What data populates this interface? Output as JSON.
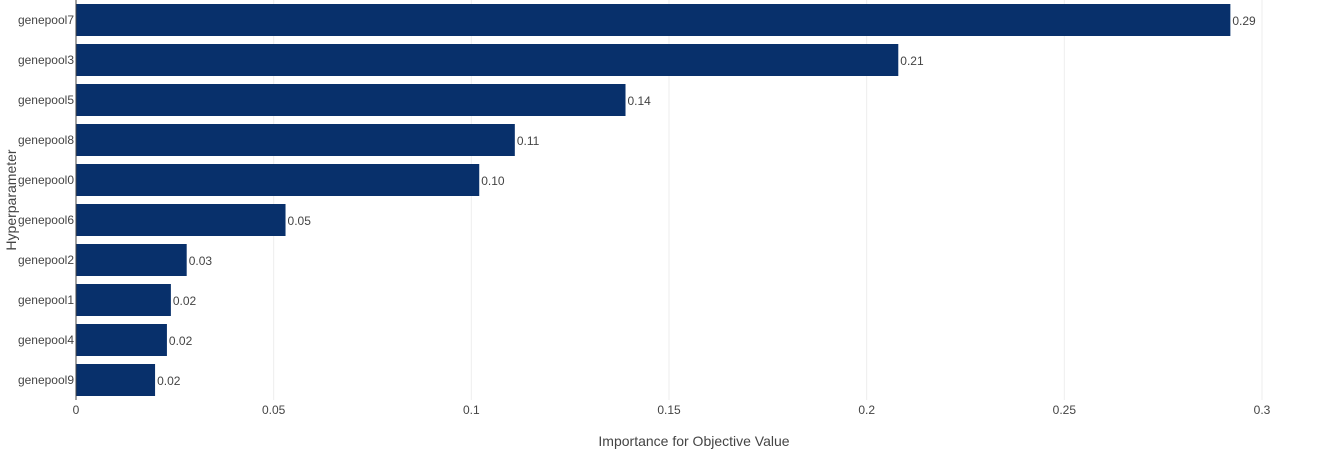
{
  "chart_data": {
    "type": "bar",
    "orientation": "horizontal",
    "xlabel": "Importance for Objective Value",
    "ylabel": "Hyperparameter",
    "xlim": [
      0,
      0.3
    ],
    "xticks": [
      0,
      0.05,
      0.1,
      0.15,
      0.2,
      0.25,
      0.3
    ],
    "xtick_labels": [
      "0",
      "0.05",
      "0.1",
      "0.15",
      "0.2",
      "0.25",
      "0.3"
    ],
    "grid": true,
    "bar_color": "#08306b",
    "categories": [
      "genepool7",
      "genepool3",
      "genepool5",
      "genepool8",
      "genepool0",
      "genepool6",
      "genepool2",
      "genepool1",
      "genepool4",
      "genepool9"
    ],
    "values": [
      0.292,
      0.208,
      0.139,
      0.111,
      0.102,
      0.053,
      0.028,
      0.024,
      0.023,
      0.02
    ],
    "data_labels": [
      "0.29",
      "0.21",
      "0.14",
      "0.11",
      "0.10",
      "0.05",
      "0.03",
      "0.02",
      "0.02",
      "0.02"
    ]
  }
}
